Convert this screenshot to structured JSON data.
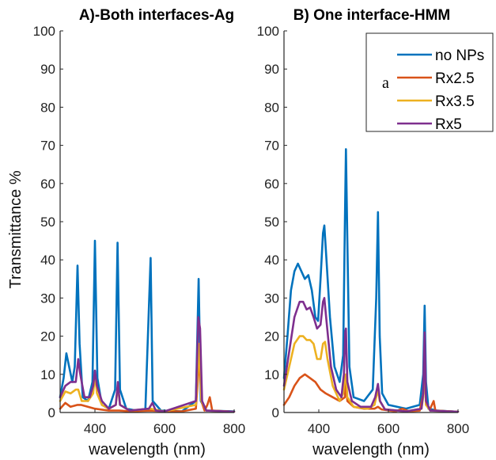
{
  "chart_data": [
    {
      "type": "line",
      "title": "A)-Both interfaces-Ag",
      "xlabel": "wavelength (nm)",
      "ylabel": "Transmittance %",
      "xlim": [
        300,
        800
      ],
      "ylim": [
        0,
        100
      ],
      "xticks": [
        400,
        600,
        800
      ],
      "yticks": [
        0,
        10,
        20,
        30,
        40,
        50,
        60,
        70,
        80,
        90,
        100
      ],
      "grid": false,
      "series": [
        {
          "name": "no NPs",
          "color": "#0072BD",
          "points": [
            [
              300,
              4
            ],
            [
              310,
              9
            ],
            [
              318,
              15.5
            ],
            [
              326,
              12
            ],
            [
              335,
              8
            ],
            [
              342,
              12
            ],
            [
              350,
              38.5
            ],
            [
              356,
              18
            ],
            [
              365,
              4
            ],
            [
              380,
              3
            ],
            [
              393,
              8
            ],
            [
              400,
              45
            ],
            [
              407,
              9
            ],
            [
              420,
              2
            ],
            [
              440,
              1
            ],
            [
              458,
              6
            ],
            [
              465,
              44.5
            ],
            [
              472,
              6
            ],
            [
              490,
              1
            ],
            [
              520,
              0.5
            ],
            [
              545,
              1
            ],
            [
              560,
              40.5
            ],
            [
              566,
              3
            ],
            [
              590,
              0.5
            ],
            [
              650,
              0.3
            ],
            [
              690,
              3
            ],
            [
              698,
              35
            ],
            [
              704,
              3
            ],
            [
              720,
              0.5
            ],
            [
              800,
              0.3
            ]
          ]
        },
        {
          "name": "Rx2.5",
          "color": "#D95319",
          "points": [
            [
              300,
              1
            ],
            [
              315,
              2.5
            ],
            [
              330,
              1.5
            ],
            [
              350,
              2
            ],
            [
              360,
              2
            ],
            [
              400,
              1
            ],
            [
              440,
              0.5
            ],
            [
              470,
              0.5
            ],
            [
              500,
              0.3
            ],
            [
              560,
              0.5
            ],
            [
              600,
              0.3
            ],
            [
              650,
              0.3
            ],
            [
              690,
              1
            ],
            [
              697,
              10
            ],
            [
              700,
              16
            ],
            [
              706,
              3
            ],
            [
              715,
              0.5
            ],
            [
              723,
              2
            ],
            [
              730,
              4
            ],
            [
              737,
              0.5
            ],
            [
              800,
              0.2
            ]
          ]
        },
        {
          "name": "Rx3.5",
          "color": "#EDB120",
          "points": [
            [
              300,
              3
            ],
            [
              315,
              5.5
            ],
            [
              330,
              5
            ],
            [
              345,
              6
            ],
            [
              352,
              6
            ],
            [
              362,
              3
            ],
            [
              380,
              3
            ],
            [
              395,
              5
            ],
            [
              400,
              10
            ],
            [
              406,
              5
            ],
            [
              420,
              2
            ],
            [
              440,
              1
            ],
            [
              460,
              2
            ],
            [
              466,
              7
            ],
            [
              472,
              2
            ],
            [
              500,
              0.5
            ],
            [
              560,
              1
            ],
            [
              570,
              0.8
            ],
            [
              600,
              0.3
            ],
            [
              690,
              2
            ],
            [
              700,
              18
            ],
            [
              706,
              3
            ],
            [
              720,
              0.5
            ],
            [
              800,
              0.2
            ]
          ]
        },
        {
          "name": "Rx5",
          "color": "#7E2F8E",
          "points": [
            [
              300,
              4
            ],
            [
              315,
              7
            ],
            [
              330,
              8
            ],
            [
              345,
              8
            ],
            [
              352,
              14
            ],
            [
              358,
              10
            ],
            [
              370,
              4
            ],
            [
              385,
              4
            ],
            [
              395,
              7
            ],
            [
              400,
              11
            ],
            [
              406,
              7
            ],
            [
              420,
              3
            ],
            [
              440,
              1
            ],
            [
              460,
              2
            ],
            [
              466,
              8
            ],
            [
              472,
              2
            ],
            [
              500,
              0.5
            ],
            [
              555,
              1
            ],
            [
              565,
              2.5
            ],
            [
              575,
              0.5
            ],
            [
              600,
              0.3
            ],
            [
              690,
              3
            ],
            [
              697,
              25
            ],
            [
              702,
              22
            ],
            [
              708,
              3
            ],
            [
              720,
              0.5
            ],
            [
              800,
              0.2
            ]
          ]
        }
      ]
    },
    {
      "type": "line",
      "title": "B) One interface-HMM",
      "xlabel": "wavelength (nm)",
      "ylabel": "",
      "xlim": [
        300,
        800
      ],
      "ylim": [
        0,
        100
      ],
      "xticks": [
        400,
        600,
        800
      ],
      "yticks": [
        0,
        10,
        20,
        30,
        40,
        50,
        60,
        70,
        80,
        90,
        100
      ],
      "grid": false,
      "legend": {
        "position": "top-right",
        "entries": [
          "no NPs",
          "Rx2.5",
          "Rx3.5",
          "Rx5"
        ],
        "annotation": "a"
      },
      "series": [
        {
          "name": "no NPs",
          "color": "#0072BD",
          "points": [
            [
              300,
              9
            ],
            [
              310,
              20
            ],
            [
              320,
              32
            ],
            [
              330,
              37
            ],
            [
              340,
              39
            ],
            [
              350,
              37
            ],
            [
              360,
              35
            ],
            [
              370,
              36
            ],
            [
              380,
              32
            ],
            [
              390,
              25
            ],
            [
              398,
              24
            ],
            [
              405,
              35
            ],
            [
              412,
              47
            ],
            [
              416,
              49
            ],
            [
              422,
              40
            ],
            [
              432,
              25
            ],
            [
              445,
              12
            ],
            [
              460,
              8
            ],
            [
              470,
              15
            ],
            [
              475,
              50
            ],
            [
              478,
              69
            ],
            [
              482,
              45
            ],
            [
              488,
              12
            ],
            [
              500,
              4
            ],
            [
              530,
              3
            ],
            [
              555,
              6
            ],
            [
              565,
              30
            ],
            [
              570,
              52.5
            ],
            [
              575,
              20
            ],
            [
              582,
              5
            ],
            [
              600,
              2
            ],
            [
              650,
              1
            ],
            [
              690,
              2
            ],
            [
              700,
              10
            ],
            [
              704,
              28
            ],
            [
              708,
              8
            ],
            [
              715,
              1
            ],
            [
              740,
              0.5
            ],
            [
              800,
              0.2
            ]
          ]
        },
        {
          "name": "Rx2.5",
          "color": "#D95319",
          "points": [
            [
              300,
              2
            ],
            [
              315,
              4
            ],
            [
              330,
              7
            ],
            [
              345,
              9
            ],
            [
              360,
              10
            ],
            [
              375,
              9
            ],
            [
              390,
              8
            ],
            [
              405,
              6
            ],
            [
              420,
              5
            ],
            [
              440,
              4
            ],
            [
              460,
              3
            ],
            [
              475,
              4
            ],
            [
              478,
              9
            ],
            [
              482,
              3
            ],
            [
              500,
              1.5
            ],
            [
              530,
              1
            ],
            [
              560,
              1
            ],
            [
              570,
              1.5
            ],
            [
              580,
              0.8
            ],
            [
              620,
              0.3
            ],
            [
              640,
              1
            ],
            [
              660,
              0.3
            ],
            [
              690,
              0.5
            ],
            [
              700,
              5
            ],
            [
              704,
              14
            ],
            [
              708,
              2
            ],
            [
              720,
              1
            ],
            [
              730,
              3
            ],
            [
              735,
              0.5
            ],
            [
              800,
              0.2
            ]
          ]
        },
        {
          "name": "Rx3.5",
          "color": "#EDB120",
          "points": [
            [
              300,
              6
            ],
            [
              315,
              12
            ],
            [
              330,
              18
            ],
            [
              345,
              20
            ],
            [
              355,
              20
            ],
            [
              365,
              19
            ],
            [
              375,
              19
            ],
            [
              385,
              18
            ],
            [
              395,
              14
            ],
            [
              405,
              14
            ],
            [
              412,
              18
            ],
            [
              418,
              18.5
            ],
            [
              425,
              14
            ],
            [
              440,
              7
            ],
            [
              460,
              3
            ],
            [
              470,
              5
            ],
            [
              475,
              9
            ],
            [
              478,
              10
            ],
            [
              482,
              4
            ],
            [
              500,
              1.5
            ],
            [
              540,
              1
            ],
            [
              560,
              2
            ],
            [
              570,
              6
            ],
            [
              575,
              3
            ],
            [
              590,
              0.8
            ],
            [
              650,
              0.3
            ],
            [
              695,
              1
            ],
            [
              700,
              4
            ],
            [
              704,
              17
            ],
            [
              708,
              2
            ],
            [
              720,
              0.5
            ],
            [
              800,
              0.2
            ]
          ]
        },
        {
          "name": "Rx5",
          "color": "#7E2F8E",
          "points": [
            [
              300,
              7
            ],
            [
              315,
              16
            ],
            [
              330,
              25
            ],
            [
              345,
              29
            ],
            [
              355,
              29
            ],
            [
              365,
              27
            ],
            [
              375,
              27.5
            ],
            [
              385,
              25
            ],
            [
              395,
              22
            ],
            [
              405,
              23
            ],
            [
              412,
              29
            ],
            [
              416,
              30
            ],
            [
              422,
              24
            ],
            [
              435,
              12
            ],
            [
              450,
              6
            ],
            [
              465,
              4
            ],
            [
              472,
              10
            ],
            [
              476,
              21
            ],
            [
              478,
              22
            ],
            [
              482,
              8
            ],
            [
              495,
              3
            ],
            [
              520,
              1.5
            ],
            [
              550,
              1.5
            ],
            [
              562,
              4
            ],
            [
              570,
              7.5
            ],
            [
              576,
              3
            ],
            [
              590,
              0.8
            ],
            [
              650,
              0.3
            ],
            [
              695,
              1
            ],
            [
              700,
              5
            ],
            [
              704,
              21
            ],
            [
              708,
              3
            ],
            [
              720,
              0.5
            ],
            [
              800,
              0.2
            ]
          ]
        }
      ]
    }
  ]
}
